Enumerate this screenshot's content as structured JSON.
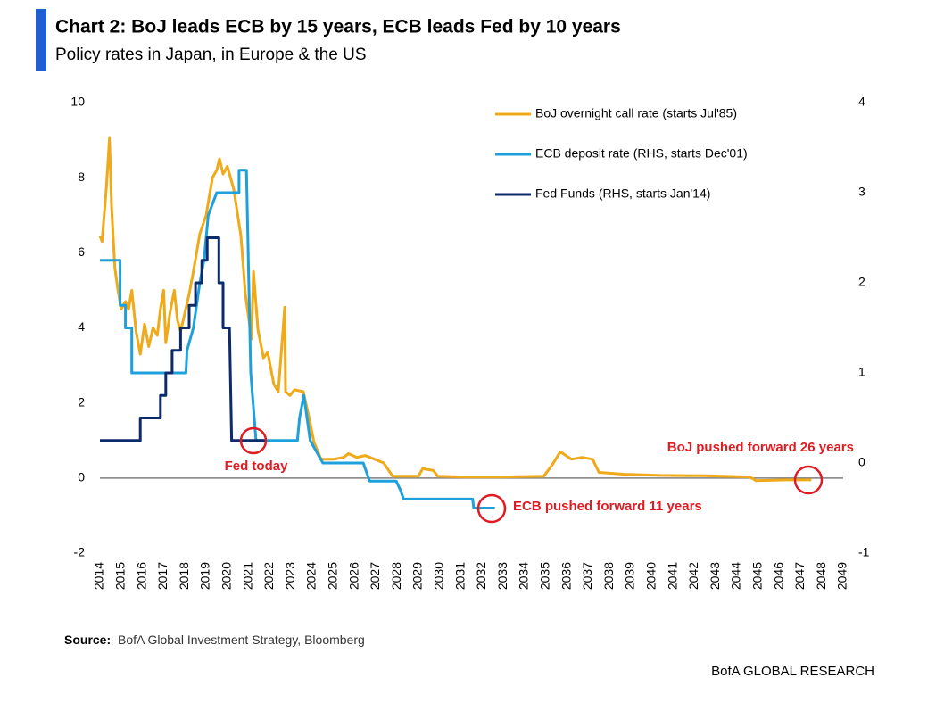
{
  "chart_data": {
    "type": "line",
    "title": "Chart 2: BoJ leads ECB by 15 years, ECB leads Fed by 10 years",
    "subtitle": "Policy rates in Japan, in Europe & the US",
    "source_label": "Source:",
    "source": "BofA Global Investment Strategy, Bloomberg",
    "branding": "BofA GLOBAL RESEARCH",
    "legend": "top-right",
    "grid": false,
    "zero_line_color": "#7f7f7f",
    "annotation_color": "#e01b22",
    "annotations": [
      "Fed today",
      "ECB pushed forward 11 years",
      "BoJ pushed forward 26 years"
    ],
    "xlim": [
      2014,
      2049
    ],
    "xticks": [
      2014,
      2015,
      2016,
      2017,
      2018,
      2019,
      2020,
      2021,
      2022,
      2023,
      2024,
      2025,
      2026,
      2027,
      2028,
      2029,
      2030,
      2031,
      2032,
      2033,
      2034,
      2035,
      2036,
      2037,
      2038,
      2039,
      2040,
      2041,
      2042,
      2043,
      2044,
      2045,
      2046,
      2047,
      2048,
      2049
    ],
    "ylim": [
      -2,
      10
    ],
    "yticks": [
      -2,
      0,
      2,
      4,
      6,
      8,
      10
    ],
    "y2lim": [
      -1,
      4
    ],
    "y2ticks": [
      -1,
      0,
      1,
      2,
      3,
      4
    ],
    "series": [
      {
        "name": "BoJ overnight call rate (starts Jul'85)",
        "color": "#f0a918",
        "axis": "y",
        "x": [
          2014.0,
          2014.1,
          2014.3,
          2014.45,
          2014.55,
          2014.7,
          2014.85,
          2015.0,
          2015.2,
          2015.35,
          2015.5,
          2015.7,
          2015.9,
          2016.1,
          2016.3,
          2016.5,
          2016.7,
          2016.85,
          2017.0,
          2017.1,
          2017.3,
          2017.5,
          2017.65,
          2017.8,
          2018.0,
          2018.2,
          2018.4,
          2018.7,
          2019.0,
          2019.3,
          2019.5,
          2019.63,
          2019.8,
          2020.0,
          2020.3,
          2020.64,
          2020.85,
          2021.14,
          2021.23,
          2021.44,
          2021.7,
          2021.9,
          2022.19,
          2022.4,
          2022.7,
          2022.74,
          2022.95,
          2023.16,
          2023.58,
          2023.87,
          2024.08,
          2024.42,
          2025.0,
          2025.47,
          2025.7,
          2026.1,
          2026.5,
          2026.94,
          2027.36,
          2027.78,
          2028.5,
          2029.0,
          2029.2,
          2029.7,
          2029.9,
          2031.0,
          2033.0,
          2034.9,
          2035.3,
          2035.68,
          2036.2,
          2036.7,
          2037.2,
          2037.5,
          2038.7,
          2040.4,
          2042.5,
          2044.6,
          2044.9,
          2046.3,
          2047.5
        ],
        "values": [
          6.45,
          6.3,
          7.7,
          9.05,
          7.2,
          5.6,
          5.0,
          4.5,
          4.7,
          4.5,
          5.0,
          3.9,
          3.3,
          4.1,
          3.5,
          4.0,
          3.8,
          4.5,
          5.0,
          3.6,
          4.4,
          5.0,
          4.2,
          3.9,
          4.4,
          4.9,
          5.5,
          6.5,
          7.0,
          8.0,
          8.2,
          8.5,
          8.1,
          8.3,
          7.7,
          6.45,
          4.9,
          3.7,
          5.5,
          3.95,
          3.2,
          3.35,
          2.5,
          2.3,
          4.55,
          2.3,
          2.2,
          2.35,
          2.3,
          1.55,
          0.95,
          0.5,
          0.5,
          0.55,
          0.65,
          0.55,
          0.6,
          0.5,
          0.4,
          0.05,
          0.05,
          0.05,
          0.25,
          0.2,
          0.05,
          0.03,
          0.03,
          0.05,
          0.35,
          0.7,
          0.5,
          0.55,
          0.5,
          0.15,
          0.1,
          0.07,
          0.06,
          0.03,
          -0.07,
          -0.05,
          -0.05
        ]
      },
      {
        "name": "ECB deposit rate (RHS, starts Dec'01)",
        "color": "#1ea0dc",
        "axis": "y2",
        "x": [
          2014.0,
          2014.95,
          2014.95,
          2015.2,
          2015.2,
          2015.5,
          2015.5,
          2018.05,
          2018.1,
          2018.4,
          2018.7,
          2018.9,
          2019.1,
          2019.5,
          2020.55,
          2020.55,
          2020.9,
          2021.1,
          2021.35,
          2023.3,
          2023.4,
          2023.6,
          2023.75,
          2023.9,
          2024.5,
          2026.4,
          2026.7,
          2027.95,
          2028.15,
          2028.3,
          2031.55,
          2031.6,
          2032.6
        ],
        "values": [
          2.25,
          2.25,
          1.75,
          1.75,
          1.5,
          1.5,
          1.0,
          1.0,
          1.25,
          1.5,
          2.0,
          2.25,
          2.75,
          3.0,
          3.0,
          3.25,
          3.25,
          1.0,
          0.25,
          0.25,
          0.5,
          0.75,
          0.5,
          0.25,
          0.0,
          0.0,
          -0.2,
          -0.2,
          -0.3,
          -0.4,
          -0.4,
          -0.5,
          -0.5
        ]
      },
      {
        "name": "Fed Funds (RHS, starts Jan'14)",
        "color": "#0d2a6b",
        "axis": "y2",
        "x": [
          2014.0,
          2015.9,
          2015.9,
          2016.85,
          2016.85,
          2017.1,
          2017.1,
          2017.4,
          2017.4,
          2017.8,
          2017.8,
          2018.2,
          2018.2,
          2018.5,
          2018.5,
          2018.8,
          2018.8,
          2019.05,
          2019.05,
          2019.6,
          2019.6,
          2019.8,
          2019.8,
          2020.1,
          2020.2,
          2021.8
        ],
        "values": [
          0.25,
          0.25,
          0.5,
          0.5,
          0.75,
          0.75,
          1.0,
          1.0,
          1.25,
          1.25,
          1.5,
          1.5,
          1.75,
          1.75,
          2.0,
          2.0,
          2.25,
          2.25,
          2.5,
          2.5,
          2.0,
          2.0,
          1.5,
          1.5,
          0.25,
          0.25
        ]
      }
    ]
  }
}
